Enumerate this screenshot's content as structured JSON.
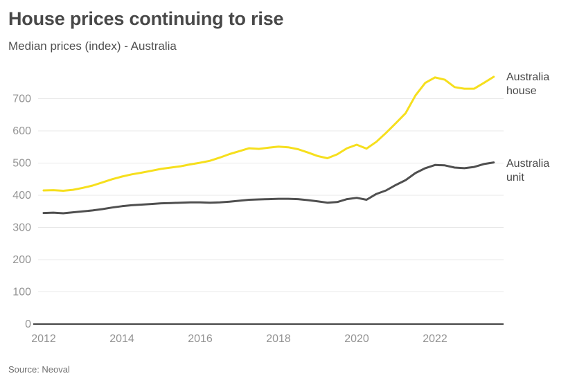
{
  "header": {
    "title": "House prices continuing to rise",
    "subtitle": "Median prices (index) - Australia"
  },
  "source": {
    "label": "Source: Neoval"
  },
  "colors": {
    "house_line": "#f6df1d",
    "unit_line": "#4f4f4f",
    "grid": "#e8e8e8",
    "axis": "#444444",
    "tick_label": "#949494",
    "series_label_text": "#4a4a4a",
    "title_text": "#484848",
    "source_text": "#6f6f6f",
    "background": "#ffffff"
  },
  "chart_data": {
    "type": "line",
    "title": "House prices continuing to rise",
    "subtitle": "Median prices (index) - Australia",
    "xlabel": "",
    "ylabel": "",
    "x_start": 2012,
    "x_step": 0.25,
    "xlim": [
      2012,
      2023.6
    ],
    "ylim": [
      0,
      790
    ],
    "x_ticks": [
      2012,
      2014,
      2016,
      2018,
      2020,
      2022
    ],
    "y_ticks": [
      0,
      100,
      200,
      300,
      400,
      500,
      600,
      700
    ],
    "grid": "horizontal",
    "legend_position": "right-of-line-end",
    "series": [
      {
        "name": "Australia house",
        "color": "#f6df1d",
        "values": [
          415,
          416,
          414,
          417,
          423,
          430,
          440,
          450,
          458,
          465,
          470,
          476,
          482,
          486,
          490,
          496,
          501,
          507,
          517,
          528,
          537,
          546,
          544,
          548,
          551,
          549,
          543,
          533,
          522,
          515,
          527,
          546,
          557,
          545,
          566,
          594,
          624,
          655,
          710,
          749,
          766,
          759,
          736,
          731,
          731,
          749,
          768
        ]
      },
      {
        "name": "Australia unit",
        "color": "#4f4f4f",
        "values": [
          345,
          346,
          344,
          347,
          350,
          353,
          357,
          362,
          366,
          369,
          371,
          373,
          375,
          376,
          377,
          378,
          378,
          377,
          378,
          380,
          383,
          386,
          387,
          388,
          389,
          389,
          388,
          385,
          381,
          377,
          379,
          388,
          392,
          386,
          404,
          415,
          432,
          447,
          469,
          484,
          494,
          493,
          486,
          484,
          488,
          497,
          502
        ]
      }
    ]
  }
}
